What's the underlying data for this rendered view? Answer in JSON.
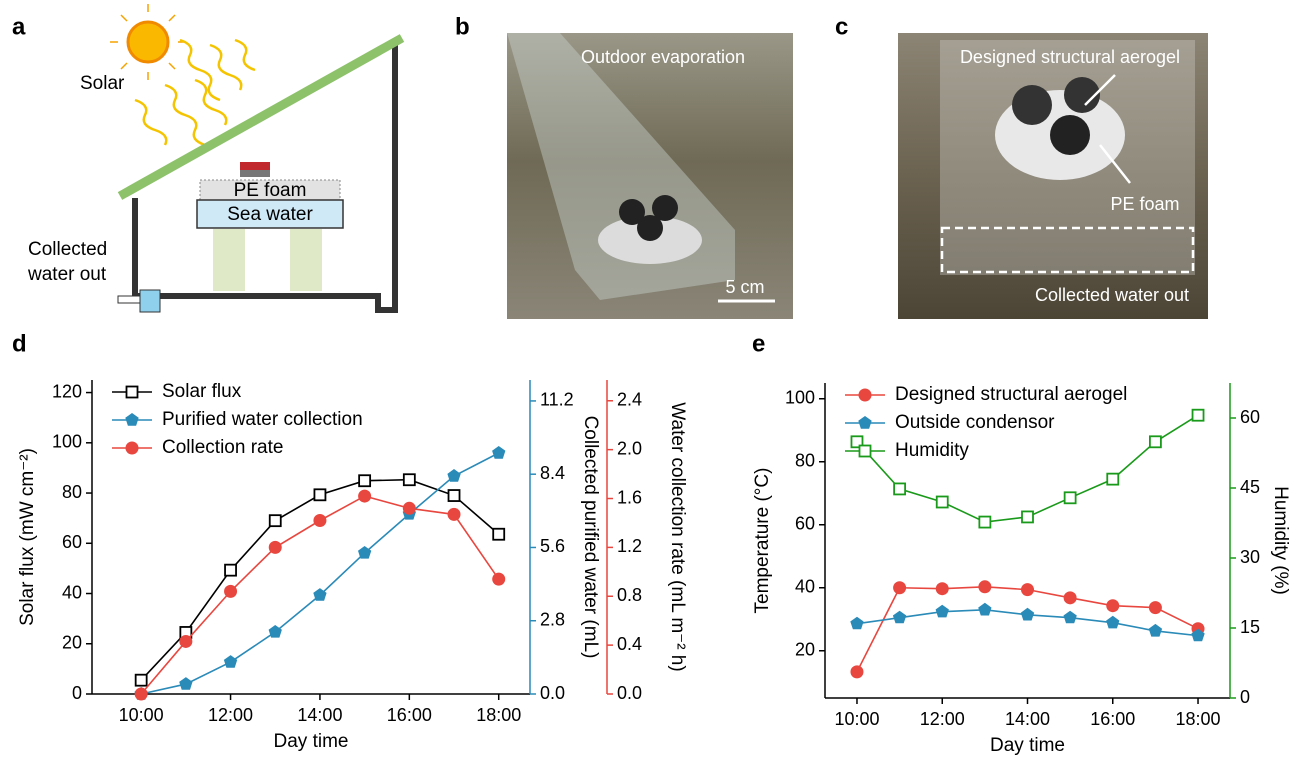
{
  "panels": {
    "a": {
      "label": "a",
      "solar": "Solar",
      "pe_foam": "PE foam",
      "sea_water": "Sea water",
      "collected": [
        "Collected",
        "water out"
      ]
    },
    "b": {
      "label": "b",
      "caption": "Outdoor evaporation",
      "scale": "5 cm"
    },
    "c": {
      "label": "c",
      "aerogel": "Designed structural aerogel",
      "pe_foam": "PE foam",
      "collected": "Collected water out"
    }
  },
  "chart_data": [
    {
      "type": "line",
      "label": "d",
      "xlabel": "Day time",
      "ylabel": "Solar flux (mW cm⁻²)",
      "y2label": "Collected purified water (mL)",
      "y3label": "Water collection rate  (mL m⁻² h)",
      "x": [
        10,
        11,
        12,
        13,
        14,
        15,
        16,
        17,
        18
      ],
      "xlim": [
        8.9,
        18.7
      ],
      "xticks": [
        {
          "value": 10,
          "label": "10:00"
        },
        {
          "value": 12,
          "label": "12:00"
        },
        {
          "value": 14,
          "label": "14:00"
        },
        {
          "value": 16,
          "label": "16:00"
        },
        {
          "value": 18,
          "label": "18:00"
        }
      ],
      "ylim": [
        0,
        125
      ],
      "yticks": [
        0,
        20,
        40,
        60,
        80,
        100,
        120
      ],
      "y2lim": [
        0,
        12.0
      ],
      "y2ticks": [
        {
          "value": 0,
          "label": "0.0"
        },
        2.8,
        5.6,
        8.4,
        11.2
      ],
      "y3lim": [
        0,
        2.57
      ],
      "y3ticks": [
        {
          "value": 0,
          "label": "0.0"
        },
        0.4,
        0.8,
        1.2,
        1.6,
        {
          "value": 2,
          "label": "2.0"
        },
        2.4
      ],
      "legend": "upper left",
      "series": [
        {
          "name": "Solar flux",
          "color": "#000000",
          "marker": "square-open",
          "axis": "y",
          "values": [
            5.5,
            24.5,
            49.3,
            69,
            79.3,
            84.9,
            85.3,
            79,
            63.6
          ]
        },
        {
          "name": "Purified water collection",
          "color": "#2a8ab8",
          "marker": "pentagon",
          "axis": "y2",
          "values": [
            0,
            0.38,
            1.22,
            2.37,
            3.78,
            5.39,
            6.88,
            8.33,
            9.21
          ]
        },
        {
          "name": "Collection rate",
          "color": "#e8473f",
          "marker": "circle",
          "axis": "y3",
          "values": [
            0,
            0.43,
            0.84,
            1.2,
            1.42,
            1.62,
            1.52,
            1.47,
            0.94
          ]
        }
      ]
    },
    {
      "type": "line",
      "label": "e",
      "xlabel": "Day time",
      "ylabel": "Temperature (°C)",
      "y2label": "Humidity (%)",
      "x": [
        10,
        11,
        12,
        13,
        14,
        15,
        16,
        17,
        18
      ],
      "xlim": [
        9.25,
        18.75
      ],
      "xticks": [
        {
          "value": 10,
          "label": "10:00"
        },
        {
          "value": 12,
          "label": "12:00"
        },
        {
          "value": 14,
          "label": "14:00"
        },
        {
          "value": 16,
          "label": "16:00"
        },
        {
          "value": 18,
          "label": "18:00"
        }
      ],
      "ylim": [
        5,
        105
      ],
      "yticks": [
        20,
        40,
        60,
        80,
        100
      ],
      "y2lim": [
        0,
        67.5
      ],
      "y2ticks": [
        0,
        15,
        30,
        45,
        60
      ],
      "legend": "upper left",
      "series": [
        {
          "name": "Designed structural aerogel",
          "color": "#e8473f",
          "marker": "circle",
          "axis": "y",
          "values": [
            13.3,
            40,
            39.7,
            40.3,
            39.4,
            36.8,
            34.3,
            33.7,
            27
          ]
        },
        {
          "name": "Outside condensor",
          "color": "#2a8ab8",
          "marker": "pentagon",
          "axis": "y",
          "values": [
            28.6,
            30.5,
            32.4,
            33,
            31.4,
            30.5,
            28.9,
            26.3,
            24.8
          ]
        },
        {
          "name": "Humidity",
          "color": "#1a9a1a",
          "marker": "square-open",
          "axis": "y2",
          "values": [
            54.9,
            44.8,
            42,
            37.7,
            38.8,
            42.9,
            46.9,
            54.9,
            60.6
          ]
        }
      ]
    }
  ]
}
